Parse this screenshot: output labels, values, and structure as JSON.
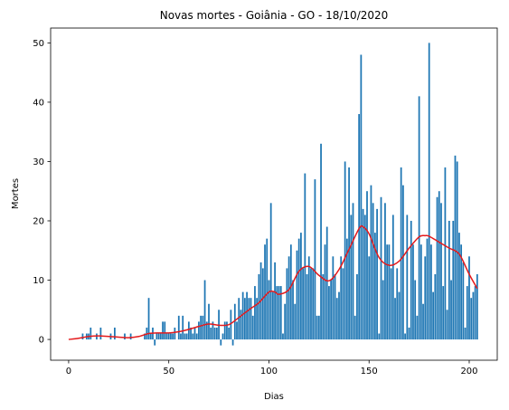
{
  "chart_data": {
    "type": "bar",
    "title": "Novas mortes - Goiânia - GO - 18/10/2020",
    "xlabel": "Dias",
    "ylabel": "Mortes",
    "xlim": [
      -9,
      214
    ],
    "ylim": [
      -3.5,
      52.5
    ],
    "xticks": [
      0,
      50,
      100,
      150,
      200
    ],
    "yticks": [
      0,
      10,
      20,
      30,
      40,
      50
    ],
    "grid": false,
    "colors": {
      "bars": "#1f77b4",
      "trend": "#e41a1c"
    },
    "series": [
      {
        "type": "bar",
        "x": [
          0,
          1,
          2,
          3,
          4,
          5,
          6,
          7,
          8,
          9,
          10,
          11,
          12,
          13,
          14,
          15,
          16,
          17,
          18,
          19,
          20,
          21,
          22,
          23,
          24,
          25,
          26,
          27,
          28,
          29,
          30,
          31,
          32,
          33,
          34,
          35,
          36,
          37,
          38,
          39,
          40,
          41,
          42,
          43,
          44,
          45,
          46,
          47,
          48,
          49,
          50,
          51,
          52,
          53,
          54,
          55,
          56,
          57,
          58,
          59,
          60,
          61,
          62,
          63,
          64,
          65,
          66,
          67,
          68,
          69,
          70,
          71,
          72,
          73,
          74,
          75,
          76,
          77,
          78,
          79,
          80,
          81,
          82,
          83,
          84,
          85,
          86,
          87,
          88,
          89,
          90,
          91,
          92,
          93,
          94,
          95,
          96,
          97,
          98,
          99,
          100,
          101,
          102,
          103,
          104,
          105,
          106,
          107,
          108,
          109,
          110,
          111,
          112,
          113,
          114,
          115,
          116,
          117,
          118,
          119,
          120,
          121,
          122,
          123,
          124,
          125,
          126,
          127,
          128,
          129,
          130,
          131,
          132,
          133,
          134,
          135,
          136,
          137,
          138,
          139,
          140,
          141,
          142,
          143,
          144,
          145,
          146,
          147,
          148,
          149,
          150,
          151,
          152,
          153,
          154,
          155,
          156,
          157,
          158,
          159,
          160,
          161,
          162,
          163,
          164,
          165,
          166,
          167,
          168,
          169,
          170,
          171,
          172,
          173,
          174,
          175,
          176,
          177,
          178,
          179,
          180,
          181,
          182,
          183,
          184,
          185,
          186,
          187,
          188,
          189,
          190,
          191,
          192,
          193,
          194,
          195,
          196,
          197,
          198,
          199,
          200,
          201,
          202,
          203,
          204
        ],
        "values": [
          0,
          0,
          0,
          0,
          0,
          0,
          0,
          1,
          0,
          1,
          1,
          2,
          0,
          0,
          1,
          0,
          2,
          0,
          0,
          0,
          0,
          1,
          0,
          2,
          0,
          0,
          0,
          0,
          1,
          0,
          0,
          1,
          0,
          0,
          0,
          0,
          0,
          0,
          1,
          2,
          7,
          1,
          2,
          -1,
          1,
          1,
          1,
          3,
          3,
          1,
          1,
          1,
          1,
          2,
          0,
          4,
          1,
          4,
          1,
          1,
          3,
          2,
          1,
          2,
          1,
          3,
          4,
          4,
          10,
          3,
          6,
          2,
          3,
          2,
          2,
          5,
          -1,
          1,
          3,
          3,
          2,
          5,
          -1,
          6,
          3,
          7,
          5,
          8,
          7,
          8,
          7,
          7,
          4,
          9,
          7,
          11,
          13,
          12,
          16,
          17,
          10,
          23,
          8,
          13,
          9,
          9,
          9,
          1,
          6,
          12,
          14,
          16,
          10,
          6,
          15,
          17,
          18,
          12,
          28,
          11,
          14,
          12,
          12,
          27,
          4,
          4,
          33,
          11,
          16,
          19,
          9,
          10,
          14,
          11,
          7,
          8,
          14,
          12,
          30,
          17,
          29,
          21,
          23,
          4,
          11,
          38,
          48,
          22,
          21,
          25,
          14,
          26,
          23,
          18,
          22,
          1,
          24,
          10,
          23,
          16,
          16,
          12,
          21,
          7,
          12,
          8,
          29,
          26,
          1,
          21,
          2,
          20,
          16,
          10,
          4,
          41,
          16,
          6,
          14,
          17,
          50,
          16,
          8,
          11,
          24,
          25,
          23,
          9,
          29,
          5,
          20,
          10,
          20,
          31,
          30,
          18,
          16,
          13,
          2,
          9,
          14,
          7,
          8,
          9,
          11
        ]
      },
      {
        "type": "line",
        "x": [
          0,
          5,
          10,
          15,
          20,
          25,
          30,
          35,
          40,
          45,
          50,
          55,
          60,
          65,
          70,
          75,
          80,
          85,
          90,
          95,
          100,
          103,
          105,
          110,
          115,
          120,
          125,
          130,
          135,
          140,
          145,
          147,
          150,
          155,
          160,
          165,
          170,
          175,
          178,
          180,
          185,
          190,
          195,
          200,
          204
        ],
        "values": [
          0,
          0.2,
          0.5,
          0.6,
          0.5,
          0.4,
          0.3,
          0.5,
          1.0,
          1.1,
          1.1,
          1.3,
          1.7,
          2.2,
          2.6,
          2.4,
          2.5,
          3.7,
          5.0,
          6.2,
          8.0,
          8.0,
          7.6,
          8.4,
          11.5,
          12.3,
          10.8,
          9.9,
          11.8,
          15.2,
          18.7,
          19.0,
          17.8,
          13.8,
          12.5,
          13.2,
          15.4,
          17.3,
          17.5,
          17.4,
          16.4,
          15.4,
          14.4,
          11.0,
          8.6
        ]
      }
    ]
  }
}
